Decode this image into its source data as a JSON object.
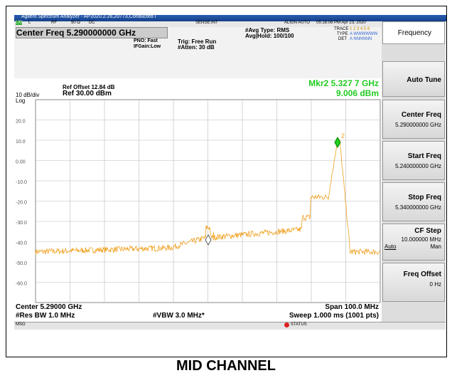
{
  "window": {
    "title": "Agilent Spectrum Analyzer - AP2020.2.26,20773,Conducted Γ"
  },
  "status_row": {
    "lxi": "LXI",
    "l": "L",
    "rf": "RF",
    "ohm": "50 Ω",
    "dc": "DC",
    "sense": "SENSE:INT",
    "align": "ALIGN AUTO",
    "time": "05:18:08 PM Apr 23, 2020"
  },
  "settings": {
    "center": "Center Freq 5.290000000 GHz",
    "pno": "PNO: Fast",
    "ifgain": "IFGain:Low",
    "trig": "Trig: Free Run",
    "atten": "#Atten: 30 dB",
    "avg_type": "#Avg Type: RMS",
    "avg_hold": "Avg|Hold: 100/100",
    "trace": "TRACE",
    "trace_nums": "1 2 3 4 5 6",
    "type": "TYPE",
    "type_val": "A WWWWWW",
    "det": "DET",
    "det_val": "A NNNNNN"
  },
  "graph": {
    "scale": "10 dB/div",
    "log": "Log",
    "ref_offset": "Ref Offset 12.84 dB",
    "ref": "Ref 30.00 dBm",
    "marker_freq": "Mkr2 5.327 7 GHz",
    "marker_level": "9.006 dBm",
    "marker1": "1",
    "marker2": "2",
    "y_labels": [
      "20.0",
      "10.0",
      "0.00",
      "-10.0",
      "-20.0",
      "-30.0",
      "-40.0",
      "-50.0",
      "-60.0"
    ]
  },
  "footer": {
    "center": "Center 5.29000 GHz",
    "rbw": "#Res BW 1.0 MHz",
    "vbw": "#VBW 3.0 MHz*",
    "span": "Span 100.0 MHz",
    "sweep": "Sweep  1.000 ms (1001 pts)",
    "msg": "MSG",
    "status": "STATUS"
  },
  "softkeys": {
    "header": "Frequency",
    "auto_tune": "Auto Tune",
    "center": "Center Freq",
    "center_val": "5.290000000 GHz",
    "start": "Start Freq",
    "start_val": "5.240000000 GHz",
    "stop": "Stop Freq",
    "stop_val": "5.340000000 GHz",
    "cf_step": "CF Step",
    "cf_step_val": "10.000000 MHz",
    "auto": "Auto",
    "man": "Man",
    "offset": "Freq Offset",
    "offset_val": "0 Hz"
  },
  "caption": "MID CHANNEL"
}
